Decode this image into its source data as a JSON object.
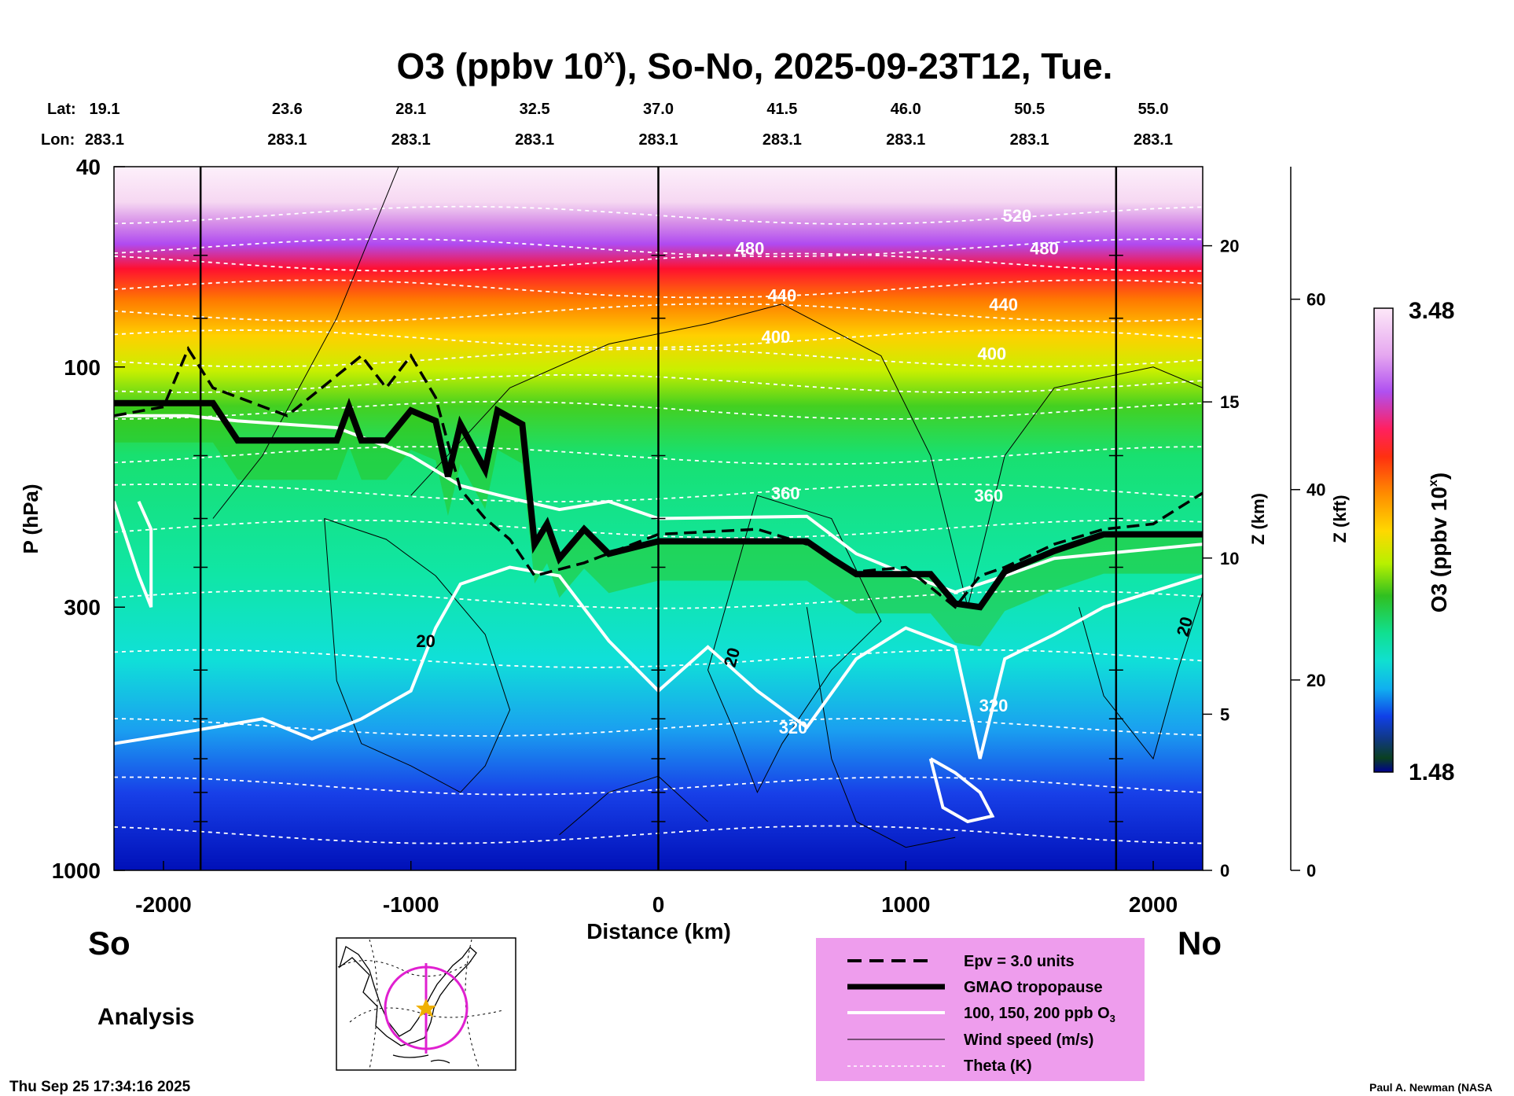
{
  "chart_data": {
    "type": "heatmap",
    "title_main": "O3 (ppbv 10",
    "title_sup": "x",
    "title_tail": "), So-No, 2025-09-23T12, Tue.",
    "xlabel": "Distance (km)",
    "ylabel": "P (hPa)",
    "z_km_label": "Z (km)",
    "z_kft_label": "Z (kft)",
    "colorbar_label": "O3 (ppbv 10",
    "colorbar_label_sup": "x",
    "colorbar_label_tail": ")",
    "colorbar_max": "3.48",
    "colorbar_min": "1.48",
    "colorbar_range": [
      1.48,
      3.48
    ],
    "xlim": [
      -2200,
      2200
    ],
    "ylim_hpa": [
      1000,
      40
    ],
    "y_scale": "log",
    "x_ticks": [
      {
        "value": -2000,
        "label": "-2000"
      },
      {
        "value": -1000,
        "label": "-1000"
      },
      {
        "value": 0,
        "label": "0"
      },
      {
        "value": 1000,
        "label": "1000"
      },
      {
        "value": 2000,
        "label": "2000"
      }
    ],
    "y_ticks": [
      {
        "value": 40,
        "label": "40"
      },
      {
        "value": 100,
        "label": "100"
      },
      {
        "value": 300,
        "label": "300"
      },
      {
        "value": 1000,
        "label": "1000"
      }
    ],
    "z_km_ticks": [
      {
        "value": 0,
        "label": "0"
      },
      {
        "value": 5,
        "label": "5"
      },
      {
        "value": 10,
        "label": "10"
      },
      {
        "value": 15,
        "label": "15"
      },
      {
        "value": 20,
        "label": "20"
      }
    ],
    "z_kft_ticks": [
      {
        "value": 0,
        "label": "0"
      },
      {
        "value": 20,
        "label": "20"
      },
      {
        "value": 40,
        "label": "40"
      },
      {
        "value": 60,
        "label": "60"
      }
    ],
    "lat_label": "Lat:",
    "lon_label": "Lon:",
    "lat_values": [
      "19.1",
      "23.6",
      "28.1",
      "32.5",
      "37.0",
      "41.5",
      "46.0",
      "50.5",
      "55.0"
    ],
    "lon_values": [
      "283.1",
      "283.1",
      "283.1",
      "283.1",
      "283.1",
      "283.1",
      "283.1",
      "283.1",
      "283.1"
    ],
    "vertical_lines_km": [
      -1850,
      0,
      1850
    ],
    "south_label": "So",
    "north_label": "No",
    "analysis_label": "Analysis",
    "timestamp": "Thu Sep 25 17:34:16 2025",
    "credit": "Paul A. Newman (NASA",
    "theta_levels": [
      {
        "label": "520",
        "hpa": 50
      },
      {
        "label": "480",
        "hpa": 58
      },
      {
        "label": "440",
        "hpa": 70
      },
      {
        "label": "400",
        "hpa": 88
      },
      {
        "label": "360",
        "hpa": 178
      },
      {
        "label": "320",
        "hpa": 520
      }
    ],
    "wind_labels": [
      "20",
      "20",
      "20"
    ],
    "tropopause_gmao": [
      [
        -2200,
        118
      ],
      [
        -1800,
        118
      ],
      [
        -1700,
        140
      ],
      [
        -1300,
        140
      ],
      [
        -1250,
        120
      ],
      [
        -1200,
        140
      ],
      [
        -1100,
        140
      ],
      [
        -1000,
        122
      ],
      [
        -900,
        128
      ],
      [
        -850,
        165
      ],
      [
        -800,
        130
      ],
      [
        -700,
        160
      ],
      [
        -650,
        122
      ],
      [
        -550,
        130
      ],
      [
        -500,
        225
      ],
      [
        -450,
        205
      ],
      [
        -400,
        240
      ],
      [
        -300,
        210
      ],
      [
        -200,
        235
      ],
      [
        0,
        222
      ],
      [
        600,
        222
      ],
      [
        700,
        240
      ],
      [
        800,
        258
      ],
      [
        1100,
        258
      ],
      [
        1200,
        295
      ],
      [
        1300,
        300
      ],
      [
        1400,
        255
      ],
      [
        1600,
        232
      ],
      [
        1800,
        215
      ],
      [
        2200,
        215
      ]
    ],
    "epv_3_units": [
      [
        -2200,
        125
      ],
      [
        -2000,
        120
      ],
      [
        -1900,
        92
      ],
      [
        -1800,
        110
      ],
      [
        -1500,
        125
      ],
      [
        -1200,
        95
      ],
      [
        -1100,
        110
      ],
      [
        -1000,
        95
      ],
      [
        -900,
        115
      ],
      [
        -800,
        175
      ],
      [
        -700,
        200
      ],
      [
        -600,
        220
      ],
      [
        -500,
        260
      ],
      [
        -300,
        245
      ],
      [
        0,
        215
      ],
      [
        400,
        210
      ],
      [
        600,
        225
      ],
      [
        800,
        255
      ],
      [
        1000,
        250
      ],
      [
        1200,
        300
      ],
      [
        1300,
        260
      ],
      [
        1400,
        250
      ],
      [
        1600,
        225
      ],
      [
        1800,
        210
      ],
      [
        2000,
        205
      ],
      [
        2200,
        178
      ]
    ],
    "legend": {
      "epv": "Epv = 3.0 units",
      "tropopause": "GMAO tropopause",
      "o3_contours": "100, 150, 200 ppb O",
      "o3_sub": "3",
      "wind": "Wind speed (m/s)",
      "theta": "Theta (K)"
    },
    "colors": {
      "legend_bg": "#ee9ded",
      "map_circle": "#e020d0",
      "map_star": "#f0b000"
    }
  }
}
